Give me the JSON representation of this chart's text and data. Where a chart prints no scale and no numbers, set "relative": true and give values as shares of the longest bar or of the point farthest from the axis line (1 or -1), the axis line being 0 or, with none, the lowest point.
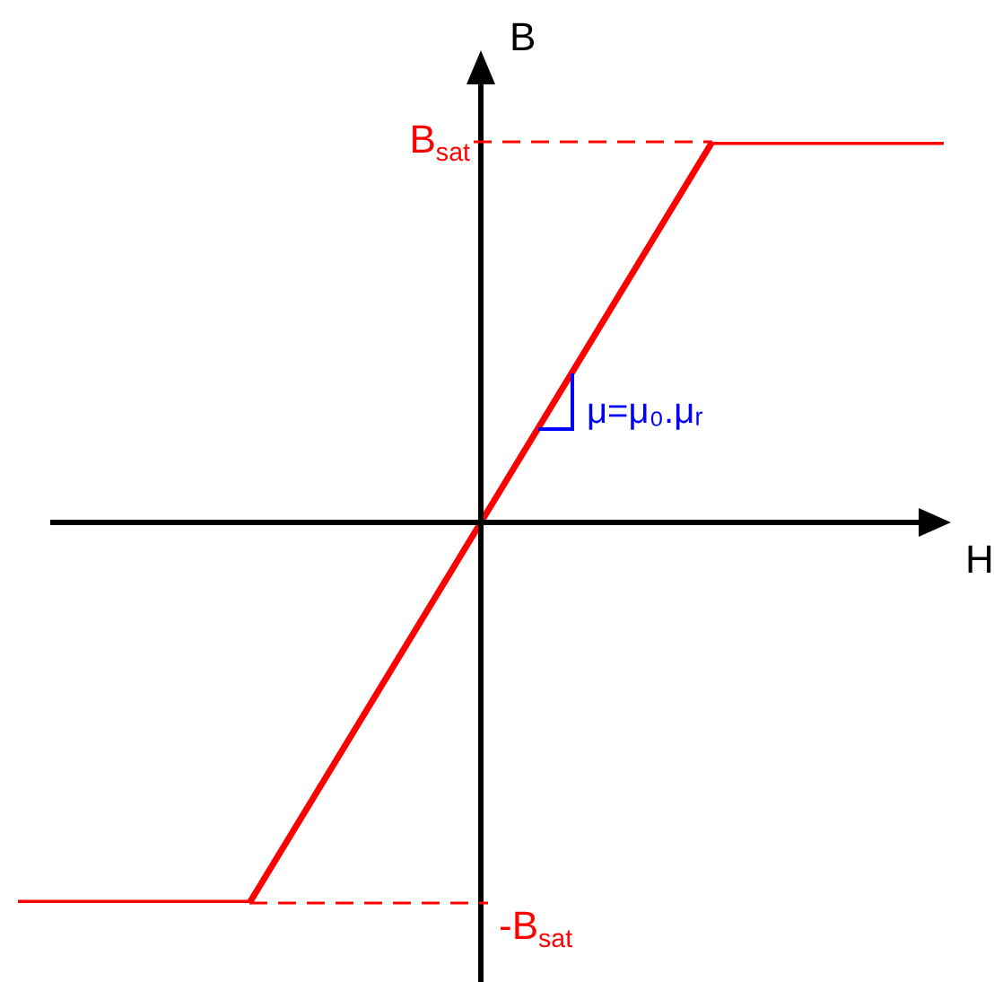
{
  "chart_data": {
    "type": "line",
    "xlabel": "H",
    "ylabel": "B",
    "relative": true,
    "categories": [
      null,
      null,
      null,
      null,
      null
    ],
    "series": [
      {
        "color": "#ff0000",
        "values": [
          -1,
          -1,
          0,
          1,
          1
        ]
      }
    ],
    "ref_lines": [
      {
        "axis": "y",
        "value": 1,
        "label": "B$_{sat}$",
        "color": "#ff0000",
        "line_style": "dashed"
      },
      {
        "axis": "y",
        "value": -1,
        "label": "-B$_{sat}$",
        "color": "#ff0000",
        "line_style": "dashed"
      }
    ],
    "annotations": [
      "μ=μ₀.μᵣ"
    ],
    "marker": "none",
    "line_style": "solid"
  }
}
